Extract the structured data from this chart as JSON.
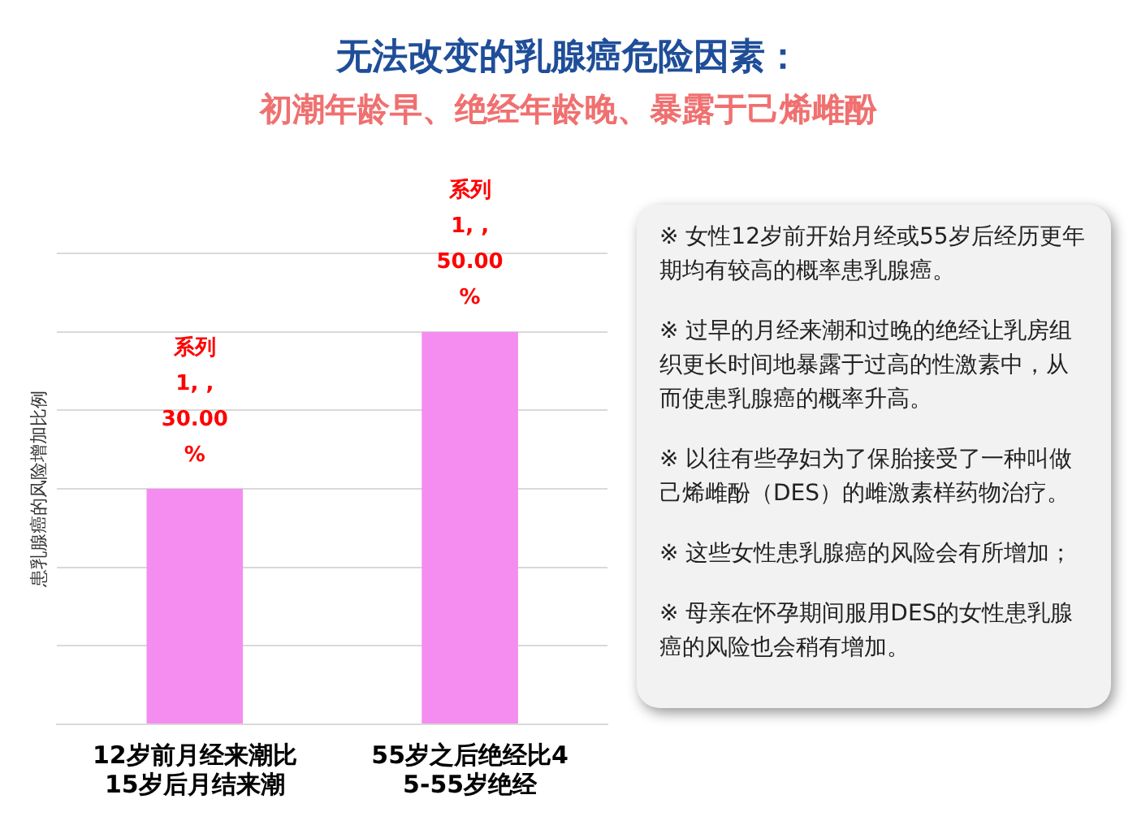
{
  "chart_data": [
    {
      "type": "bar",
      "title": "无法改变的乳腺癌危险因素：",
      "subtitle": "初潮年龄早、绝经年龄晚、暴露于己烯雌酚",
      "ylabel": "患乳腺癌的风险增加比例",
      "categories": [
        "12岁前月经来潮比15岁后月结来潮",
        "55岁之后绝经比45-55岁绝经"
      ],
      "series": [
        {
          "color": "#f58cf0",
          "values": [
            30,
            50
          ],
          "value_labels": [
            "系列 1, , 30.00 %",
            "系列 1, , 50.00 %"
          ]
        }
      ],
      "ylim": [
        0,
        60
      ],
      "yticks": [
        {
          "value": 0,
          "label": null
        },
        {
          "value": 10,
          "label": null
        },
        {
          "value": 20,
          "label": null
        },
        {
          "value": 30,
          "label": null
        },
        {
          "value": 40,
          "label": null
        },
        {
          "value": 50,
          "label": null
        },
        {
          "value": 60,
          "label": null
        }
      ],
      "grid": "y",
      "tick_labels": "x",
      "legend": false
    },
    {
      "type": "other",
      "annotations": [
        "※ 女性12岁前开始月经或55岁后经历更年期均有较高的概率患乳腺癌。",
        "※ 过早的月经来潮和过晚的绝经让乳房组织更长时间地暴露于过高的性激素中，从而使患乳腺癌的概率升高。",
        "※ 以往有些孕妇为了保胎接受了一种叫做己烯雌酚（DES）的雌激素样药物治疗。",
        "※ 这些女性患乳腺癌的风险会有所增加；",
        "※ 母亲在怀孕期间服用DES的女性患乳腺癌的风险也会稍有增加。"
      ]
    }
  ]
}
